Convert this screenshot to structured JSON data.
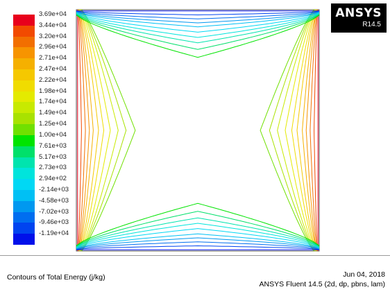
{
  "window": {
    "logo_brand": "ANSYS",
    "logo_version": "R14.5"
  },
  "colorbar": {
    "labels": [
      "3.69e+04",
      "3.44e+04",
      "3.20e+04",
      "2.96e+04",
      "2.71e+04",
      "2.47e+04",
      "2.22e+04",
      "1.98e+04",
      "1.74e+04",
      "1.49e+04",
      "1.25e+04",
      "1.00e+04",
      "7.61e+03",
      "5.17e+03",
      "2.73e+03",
      "2.94e+02",
      "-2.14e+03",
      "-4.58e+03",
      "-7.02e+03",
      "-9.46e+03",
      "-1.19e+04"
    ],
    "colors": [
      "#e8001c",
      "#f24a00",
      "#f26f00",
      "#f79400",
      "#f5b000",
      "#f5c800",
      "#f0dc00",
      "#e4ea00",
      "#c8ea00",
      "#a8e200",
      "#70e000",
      "#00e400",
      "#00e06a",
      "#00e4ae",
      "#00e4dc",
      "#00d8f4",
      "#00c0f4",
      "#0098f0",
      "#006ef0",
      "#0044f0",
      "#0010ea"
    ]
  },
  "footer": {
    "title": "Contours of Total Energy (j/kg)",
    "date": "Jun 04, 2018",
    "solver": "ANSYS Fluent 14.5 (2d, dp, pbns, lam)"
  }
}
